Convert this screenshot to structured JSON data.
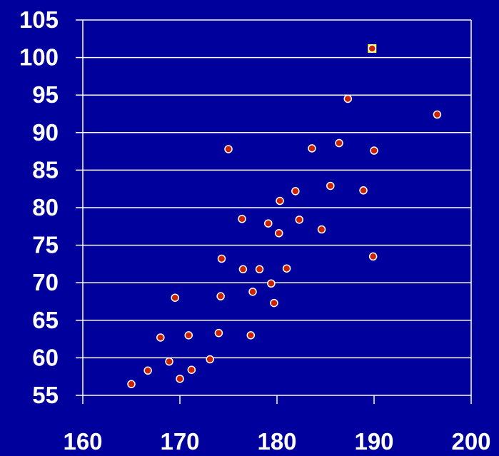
{
  "chart_data": {
    "type": "scatter",
    "title": "",
    "xlabel": "",
    "ylabel": "",
    "xlim": [
      160,
      200
    ],
    "ylim": [
      55,
      105
    ],
    "x_ticks": [
      160,
      170,
      180,
      190,
      200
    ],
    "y_ticks": [
      55,
      60,
      65,
      70,
      75,
      80,
      85,
      90,
      95,
      100,
      105
    ],
    "grid": "horizontal",
    "colors": {
      "background": "#00009c",
      "grid": "#ffffff",
      "marker_fill": "#cc2200",
      "marker_edge": "#ffffff",
      "highlight": "#ffff00",
      "text": "#ffffff"
    },
    "points": [
      [
        165.0,
        56.5
      ],
      [
        166.7,
        58.3
      ],
      [
        168.0,
        62.7
      ],
      [
        168.9,
        59.5
      ],
      [
        169.5,
        68.0
      ],
      [
        170.0,
        57.2
      ],
      [
        170.9,
        63.0
      ],
      [
        171.2,
        58.4
      ],
      [
        173.1,
        59.8
      ],
      [
        174.0,
        63.3
      ],
      [
        174.2,
        68.2
      ],
      [
        174.3,
        73.2
      ],
      [
        175.0,
        87.8
      ],
      [
        176.4,
        78.5
      ],
      [
        176.5,
        71.8
      ],
      [
        177.3,
        63.0
      ],
      [
        177.5,
        68.8
      ],
      [
        178.2,
        71.8
      ],
      [
        179.1,
        77.9
      ],
      [
        179.4,
        69.9
      ],
      [
        179.7,
        67.3
      ],
      [
        180.2,
        76.6
      ],
      [
        180.3,
        80.9
      ],
      [
        181.0,
        71.9
      ],
      [
        181.9,
        82.2
      ],
      [
        182.3,
        78.4
      ],
      [
        183.6,
        87.9
      ],
      [
        184.6,
        77.1
      ],
      [
        185.5,
        82.9
      ],
      [
        186.4,
        88.6
      ],
      [
        187.3,
        94.5
      ],
      [
        188.9,
        82.3
      ],
      [
        189.8,
        101.2
      ],
      [
        189.9,
        73.5
      ],
      [
        190.0,
        87.6
      ],
      [
        196.5,
        92.4
      ]
    ]
  }
}
